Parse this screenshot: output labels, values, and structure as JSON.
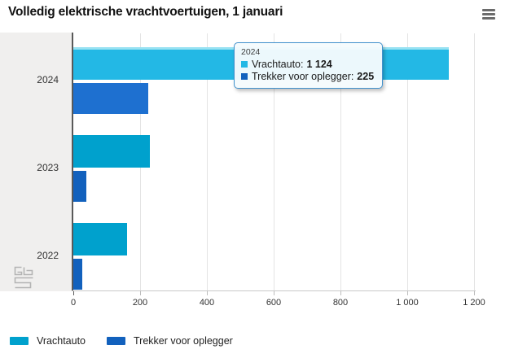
{
  "header": {
    "title": "Volledig elektrische vrachtvoertuigen, 1 januari"
  },
  "chart_data": {
    "type": "bar",
    "orientation": "horizontal",
    "title": "Volledig elektrische vrachtvoertuigen, 1 januari",
    "categories": [
      "2024",
      "2023",
      "2022"
    ],
    "series": [
      {
        "name": "Vrachtauto",
        "color": "#00a1cd",
        "hover_color": "#23b8e5",
        "hover_edge_color": "#98e2f2",
        "values": [
          1124,
          230,
          160
        ]
      },
      {
        "name": "Trekker voor oplegger",
        "color": "#1261bd",
        "hover_color": "#1e70d0",
        "values": [
          225,
          39,
          27
        ]
      }
    ],
    "xlim": [
      0,
      1200
    ],
    "x_ticks": [
      {
        "value": 0,
        "label": "0"
      },
      {
        "value": 200,
        "label": "200"
      },
      {
        "value": 400,
        "label": "400"
      },
      {
        "value": 600,
        "label": "600"
      },
      {
        "value": 800,
        "label": "800"
      },
      {
        "value": 1000,
        "label": "1 000"
      },
      {
        "value": 1200,
        "label": "1 200"
      }
    ],
    "grid": true,
    "legend_position": "bottom",
    "highlighted_category": "2024"
  },
  "tooltip": {
    "category": "2024",
    "rows": [
      {
        "label": "Vrachtauto:",
        "value": "1 124",
        "color": "#23b8e5"
      },
      {
        "label": "Trekker voor oplegger:",
        "value": "225",
        "color": "#1261bd"
      }
    ]
  },
  "legend": {
    "items": [
      {
        "label": "Vrachtauto",
        "color": "#00a1cd"
      },
      {
        "label": "Trekker voor oplegger",
        "color": "#1261bd"
      }
    ]
  },
  "watermark": {
    "name": "cbs-logo"
  }
}
